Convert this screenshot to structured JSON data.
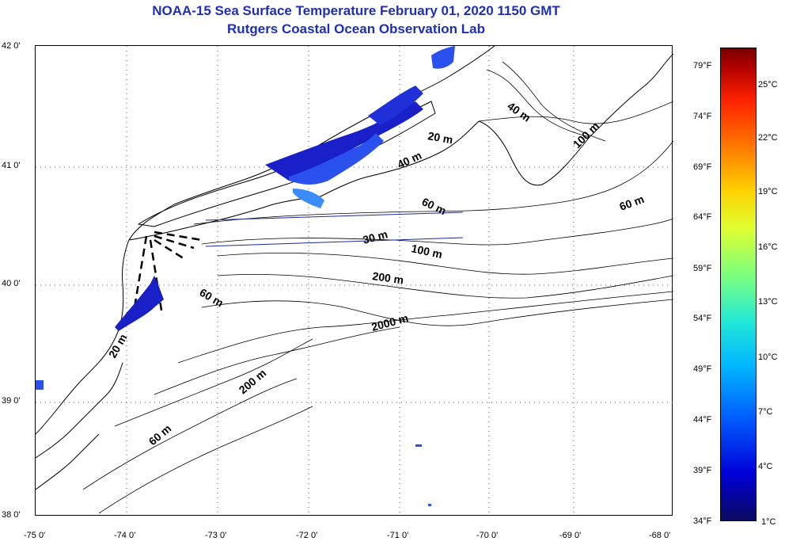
{
  "title": {
    "line1": "NOAA-15 Sea Surface Temperature February 01, 2020 1150 GMT",
    "line2": "Rutgers Coastal Ocean Observation Lab"
  },
  "axes": {
    "lat_labels": [
      "42 0'",
      "41 0'",
      "40 0'",
      "39 0'",
      "38 0'"
    ],
    "lon_labels": [
      "-75 0'",
      "-74 0'",
      "-73 0'",
      "-72 0'",
      "-71 0'",
      "-70 0'",
      "-69 0'",
      "-68 0'"
    ]
  },
  "depth_labels": {
    "l20a": "20 m",
    "l40a": "40 m",
    "l40b": "40 m",
    "l100a": "100 m",
    "l60a": "60 m",
    "l60b": "60 m",
    "l30": "30 m",
    "l100b": "100 m",
    "l200a": "200 m",
    "l60c": "60 m",
    "l2000": "2000 m",
    "l20b": "20 m",
    "l200b": "200 m",
    "l60d": "60 m"
  },
  "colorbar": {
    "f_labels": [
      "79°F",
      "74°F",
      "69°F",
      "64°F",
      "59°F",
      "54°F",
      "49°F",
      "44°F",
      "39°F",
      "34°F"
    ],
    "c_labels": [
      "25°C",
      "22°C",
      "19°C",
      "16°C",
      "13°C",
      "10°C",
      "7°C",
      "4°C",
      "1°C"
    ],
    "colors": [
      "#0a0a60",
      "#0000d8",
      "#0060ff",
      "#00b8ff",
      "#20e8d8",
      "#7cff7c",
      "#e0ff30",
      "#ffd000",
      "#ff7a00",
      "#ff2200",
      "#7a0000"
    ]
  },
  "sst_color_range": [
    "#1a20c8",
    "#2a50ee",
    "#3a8cff"
  ]
}
